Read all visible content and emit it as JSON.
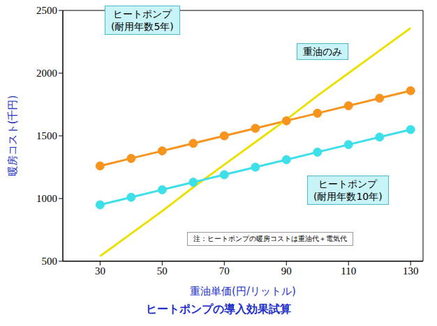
{
  "chart_data": {
    "type": "line",
    "title": "ヒートポンプの導入効果試算",
    "x_label": "重油単価(円/リットル)",
    "y_label": "暖房コスト(千円)",
    "annotations": [
      "注：ヒートポンプの暖房コストは重油代＋電気代"
    ],
    "x": [
      30,
      40,
      50,
      60,
      70,
      80,
      90,
      100,
      110,
      120,
      130
    ],
    "series": [
      {
        "name": "ヒートポンプ(耐用年数5年)",
        "color": "#f7941d",
        "marker": "circle",
        "values": [
          1260,
          1320,
          1380,
          1440,
          1500,
          1560,
          1620,
          1680,
          1740,
          1800,
          1860
        ]
      },
      {
        "name": "重油のみ",
        "color": "#ece000",
        "marker": "none",
        "values": [
          540,
          720,
          900,
          1090,
          1270,
          1450,
          1630,
          1820,
          2000,
          2180,
          2360
        ]
      },
      {
        "name": "ヒートポンプ(耐用年数10年)",
        "color": "#3ddfe8",
        "marker": "circle",
        "values": [
          950,
          1010,
          1070,
          1130,
          1190,
          1250,
          1310,
          1370,
          1430,
          1490,
          1550
        ]
      }
    ],
    "xlim": [
      18,
      134
    ],
    "ylim": [
      500,
      2500
    ],
    "xticks": [
      30,
      50,
      70,
      90,
      110,
      130
    ],
    "yticks": [
      500,
      1000,
      1500,
      2000,
      2500
    ],
    "grid": false
  }
}
